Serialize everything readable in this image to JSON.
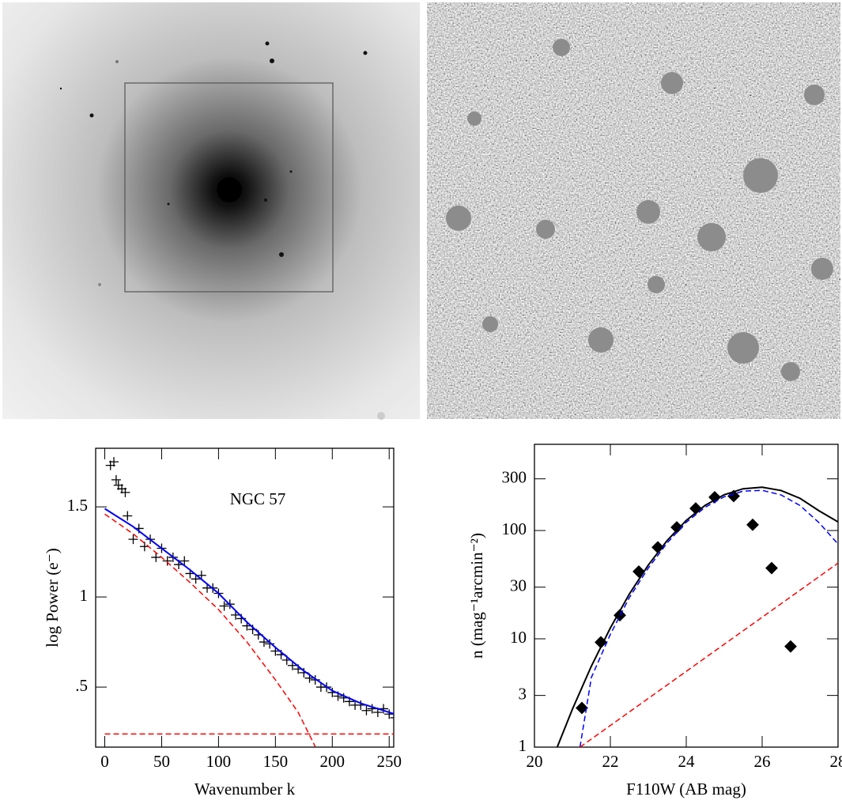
{
  "chart_data": [
    {
      "type": "scatter",
      "annotation": "NGC 57",
      "x_label": "Wavenumber k",
      "y_label": "log Power (e⁻)",
      "xlim": [
        -8,
        254
      ],
      "ylim": [
        0.167,
        1.825
      ],
      "xticks": [
        0,
        50,
        100,
        150,
        200,
        250
      ],
      "yticks": [
        {
          "value": 0.5,
          "label": ".5"
        },
        1,
        1.5
      ],
      "series": [
        {
          "style": "cross",
          "color": "#000000",
          "x": [
            5,
            8,
            10,
            12,
            15,
            18,
            20,
            25,
            30,
            35,
            40,
            45,
            50,
            55,
            60,
            65,
            70,
            75,
            80,
            85,
            90,
            95,
            100,
            105,
            110,
            115,
            120,
            125,
            130,
            135,
            140,
            145,
            150,
            155,
            160,
            165,
            170,
            175,
            180,
            185,
            190,
            195,
            200,
            205,
            210,
            215,
            220,
            225,
            230,
            235,
            240,
            245,
            250,
            255
          ],
          "values": [
            1.73,
            1.75,
            1.65,
            1.62,
            1.6,
            1.58,
            1.45,
            1.32,
            1.38,
            1.28,
            1.32,
            1.22,
            1.27,
            1.2,
            1.22,
            1.18,
            1.2,
            1.13,
            1.1,
            1.12,
            1.05,
            1.05,
            1.02,
            0.95,
            0.96,
            0.9,
            0.88,
            0.84,
            0.82,
            0.79,
            0.75,
            0.74,
            0.7,
            0.68,
            0.65,
            0.62,
            0.6,
            0.58,
            0.55,
            0.54,
            0.5,
            0.5,
            0.47,
            0.45,
            0.44,
            0.42,
            0.4,
            0.4,
            0.37,
            0.38,
            0.36,
            0.38,
            0.35,
            0.33
          ]
        },
        {
          "style": "line",
          "color": "#0000ff",
          "x": [
            0,
            25,
            50,
            75,
            100,
            125,
            150,
            175,
            200,
            225,
            255
          ],
          "values": [
            1.49,
            1.39,
            1.27,
            1.15,
            1.02,
            0.86,
            0.72,
            0.59,
            0.48,
            0.41,
            0.35
          ]
        },
        {
          "style": "dashed",
          "color": "#ff0000",
          "x": [
            0,
            25,
            50,
            75,
            100,
            125,
            150,
            170,
            185
          ],
          "values": [
            1.46,
            1.35,
            1.22,
            1.08,
            0.93,
            0.75,
            0.54,
            0.36,
            0.17
          ]
        },
        {
          "style": "dashed",
          "color": "#ff0000",
          "x": [
            0,
            255
          ],
          "values": [
            0.24,
            0.24
          ]
        }
      ]
    },
    {
      "type": "scatter",
      "x_label": "F110W (AB mag)",
      "y_label": "n (mag⁻¹arcmin⁻²)",
      "log_y": true,
      "xlim": [
        20,
        28
      ],
      "ylim": [
        1,
        625
      ],
      "xticks": [
        20,
        22,
        24,
        26,
        28
      ],
      "yticks": [
        1,
        3,
        10,
        30,
        100,
        300
      ],
      "series": [
        {
          "style": "diamond",
          "color": "#000000",
          "x": [
            21.25,
            21.75,
            22.25,
            22.75,
            23.25,
            23.75,
            24.25,
            24.75,
            25.25,
            25.75,
            26.25,
            26.75
          ],
          "values": [
            2.3,
            9.3,
            16.5,
            41.8,
            70,
            107,
            160,
            203,
            208,
            113,
            45,
            8.5
          ]
        },
        {
          "style": "line",
          "color": "#000000",
          "x": [
            20.6,
            21,
            21.5,
            22,
            22.5,
            23,
            23.5,
            24,
            24.5,
            25,
            25.5,
            26,
            26.5,
            27,
            27.5,
            28
          ],
          "values": [
            1,
            2.24,
            5.6,
            12.6,
            25.9,
            48,
            81,
            124,
            171,
            214,
            243,
            251,
            234,
            198,
            152,
            120
          ]
        },
        {
          "style": "dashed",
          "color": "#0000ff",
          "x": [
            21.2,
            21.5,
            22,
            22.5,
            23,
            23.5,
            24,
            24.5,
            25,
            25.5,
            26,
            26.5,
            27,
            27.5,
            28
          ],
          "values": [
            1,
            4.4,
            11,
            24,
            45,
            77,
            119,
            164,
            205,
            231,
            235,
            213,
            170,
            118,
            75
          ]
        },
        {
          "style": "dashed",
          "color": "#ff0000",
          "x": [
            21.2,
            28
          ],
          "values": [
            1,
            50
          ]
        }
      ]
    }
  ]
}
